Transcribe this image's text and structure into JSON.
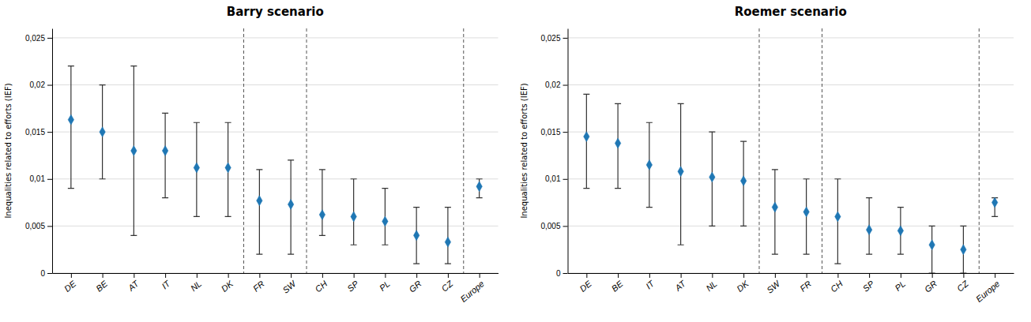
{
  "chart_data": [
    {
      "type": "errorbar",
      "title": "Barry scenario",
      "categories": [
        "DE",
        "BE",
        "AT",
        "IT",
        "NL",
        "DK",
        "FR",
        "SW",
        "CH",
        "SP",
        "PL",
        "GR",
        "CZ",
        "Europe"
      ],
      "values": [
        0.0163,
        0.015,
        0.013,
        0.013,
        0.0112,
        0.0112,
        0.0077,
        0.0073,
        0.0062,
        0.006,
        0.0055,
        0.004,
        0.0033,
        0.0092
      ],
      "ci_low": [
        0.009,
        0.01,
        0.004,
        0.008,
        0.006,
        0.006,
        0.002,
        0.002,
        0.004,
        0.003,
        0.003,
        0.001,
        0.001,
        0.008
      ],
      "ci_high": [
        0.022,
        0.02,
        0.022,
        0.017,
        0.016,
        0.016,
        0.011,
        0.012,
        0.011,
        0.01,
        0.009,
        0.007,
        0.007,
        0.01
      ],
      "separators": [
        6,
        8,
        13
      ],
      "ylabel": "Inequalities related to efforts (IEF)",
      "ylim": [
        0,
        0.026
      ],
      "yticks": [
        0,
        {
          "value": 0.005,
          "label": "0,005"
        },
        {
          "value": 0.01,
          "label": "0,01"
        },
        {
          "value": 0.015,
          "label": "0,015"
        },
        {
          "value": 0.02,
          "label": "0,02"
        },
        {
          "value": 0.025,
          "label": "0,025"
        }
      ],
      "grid": true,
      "marker": "diamond"
    },
    {
      "type": "errorbar",
      "title": "Roemer scenario",
      "categories": [
        "DE",
        "BE",
        "IT",
        "AT",
        "NL",
        "DK",
        "SW",
        "FR",
        "CH",
        "SP",
        "PL",
        "GR",
        "CZ",
        "Europe"
      ],
      "values": [
        0.0145,
        0.0138,
        0.0115,
        0.0108,
        0.0102,
        0.0098,
        0.007,
        0.0065,
        0.006,
        0.0046,
        0.0045,
        0.003,
        0.0025,
        0.0075
      ],
      "ci_low": [
        0.009,
        0.009,
        0.007,
        0.003,
        0.005,
        0.005,
        0.002,
        0.002,
        0.001,
        0.002,
        0.002,
        0.0,
        0.0,
        0.006
      ],
      "ci_high": [
        0.019,
        0.018,
        0.016,
        0.018,
        0.015,
        0.014,
        0.011,
        0.01,
        0.01,
        0.008,
        0.007,
        0.005,
        0.005,
        0.008
      ],
      "separators": [
        6,
        8,
        13
      ],
      "ylabel": "Inequalities related to efforts (IEF)",
      "ylim": [
        0,
        0.026
      ],
      "yticks": [
        0,
        {
          "value": 0.005,
          "label": "0,005"
        },
        {
          "value": 0.01,
          "label": "0,01"
        },
        {
          "value": 0.015,
          "label": "0,015"
        },
        {
          "value": 0.02,
          "label": "0,02"
        },
        {
          "value": 0.025,
          "label": "0,025"
        }
      ],
      "grid": true,
      "marker": "diamond"
    }
  ]
}
